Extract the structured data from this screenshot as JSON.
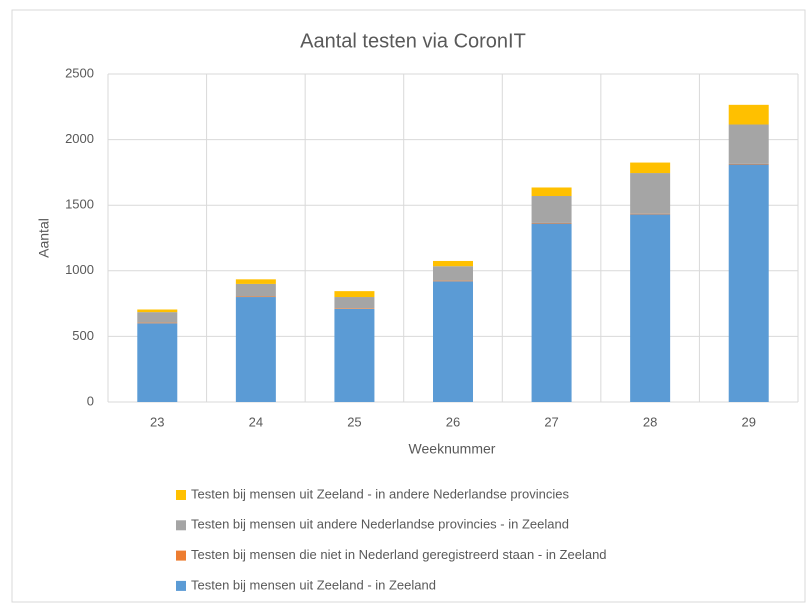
{
  "chart_data": {
    "type": "stacked_bar",
    "title": "Aantal testen via CoronIT",
    "x_label": "Weeknummer",
    "y_label": "Aantal",
    "categories": [
      "23",
      "24",
      "25",
      "26",
      "27",
      "28",
      "29"
    ],
    "series": [
      {
        "name": "Testen bij mensen uit Zeeland - in Zeeland",
        "color": "#5b9bd5",
        "values": [
          600,
          800,
          710,
          920,
          1360,
          1430,
          1810
        ]
      },
      {
        "name": "Testen bij mensen die niet in Nederland geregistreerd staan - in Zeeland",
        "color": "#ed7d31",
        "values": [
          5,
          5,
          5,
          5,
          5,
          5,
          5
        ]
      },
      {
        "name": "Testen bij mensen uit andere Nederlandse provincies - in Zeeland",
        "color": "#a5a5a5",
        "values": [
          80,
          95,
          85,
          110,
          205,
          310,
          300
        ]
      },
      {
        "name": "Testen bij mensen uit Zeeland - in andere Nederlandse provincies",
        "color": "#ffc000",
        "values": [
          20,
          35,
          45,
          40,
          65,
          80,
          150
        ]
      }
    ],
    "ylim": [
      0,
      2500
    ],
    "yticks": [
      0,
      500,
      1000,
      1500,
      2000,
      2500
    ],
    "grid": true,
    "legend": "bottom"
  }
}
